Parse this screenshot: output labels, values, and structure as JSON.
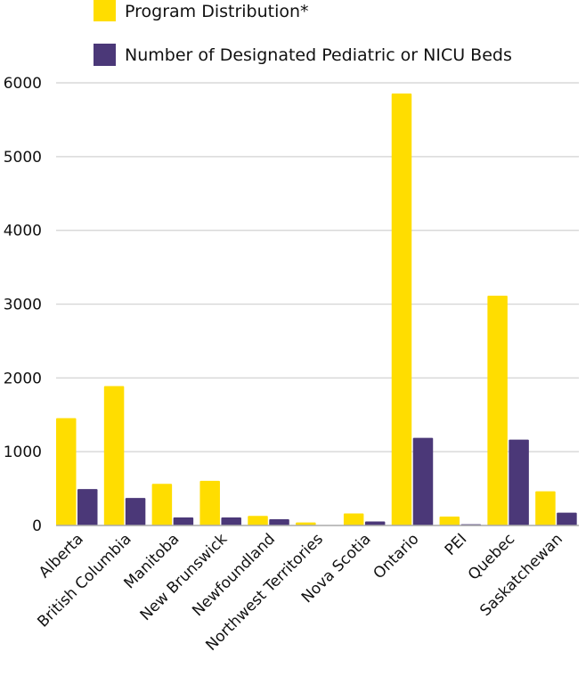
{
  "chart_data": {
    "type": "bar",
    "title": "",
    "xlabel": "",
    "ylabel": "",
    "ylim": [
      0,
      6000
    ],
    "yticks": [
      0,
      1000,
      2000,
      3000,
      4000,
      5000,
      6000
    ],
    "ytick_labels": [
      "0",
      "1000",
      "2000",
      "3000",
      "4000",
      "5000",
      "6000"
    ],
    "grid": true,
    "legend_position": "top",
    "categories": [
      "Alberta",
      "British Columbia",
      "Manitoba",
      "New Brunswick",
      "Newfoundland",
      "Northwest Territories",
      "Nova Scotia",
      "Ontario",
      "PEI",
      "Quebec",
      "Saskatchewan"
    ],
    "series": [
      {
        "name": "Program Distribution*",
        "color": "#FFDD00",
        "values": [
          1455,
          1890,
          565,
          605,
          130,
          40,
          163,
          5855,
          121,
          3115,
          463
        ]
      },
      {
        "name": "Number of Designated Pediatric or NICU Beds",
        "color": "#4B3878",
        "values": [
          493,
          373,
          108,
          108,
          84,
          2,
          55,
          1187,
          16,
          1163,
          173
        ]
      }
    ]
  }
}
